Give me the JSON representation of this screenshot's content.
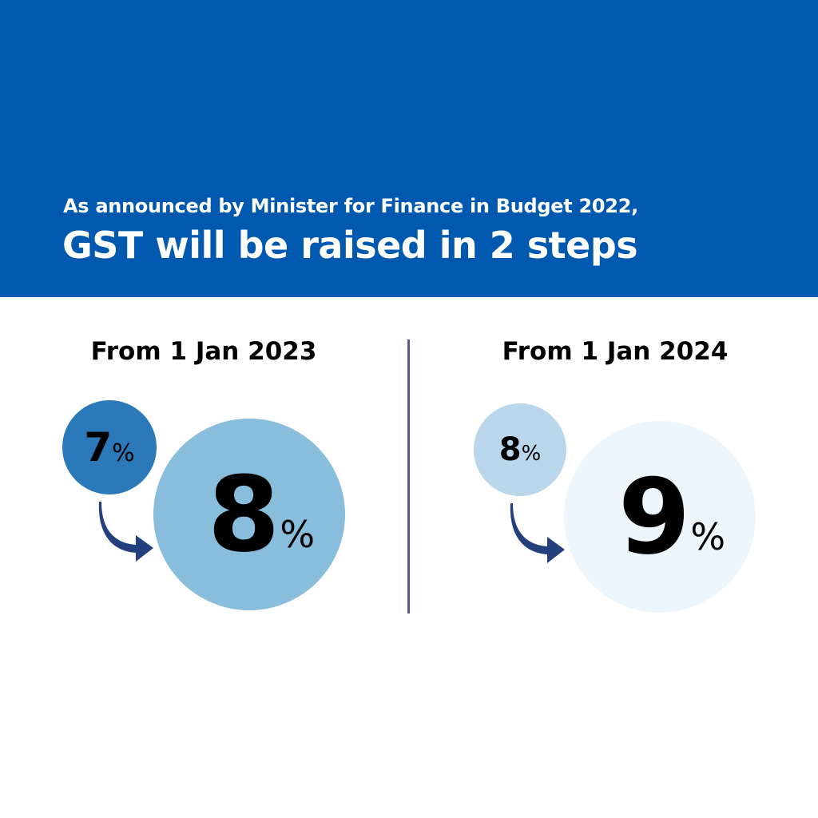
{
  "header": {
    "subtitle": "As announced by Minister for Finance in Budget 2022,",
    "title": "GST will be raised in 2 steps"
  },
  "steps": [
    {
      "heading": "From 1 Jan 2023",
      "from_value": "7",
      "to_value": "8",
      "unit": "%",
      "from_color": "#2b79b8",
      "to_color": "#89bddc"
    },
    {
      "heading": "From 1 Jan 2024",
      "from_value": "8",
      "to_value": "9",
      "unit": "%",
      "from_color": "#b9d6ea",
      "to_color": "#eef6fd"
    }
  ],
  "colors": {
    "header": "#0059ae",
    "arrow": "#233f7c",
    "divider": "#575c8c"
  }
}
